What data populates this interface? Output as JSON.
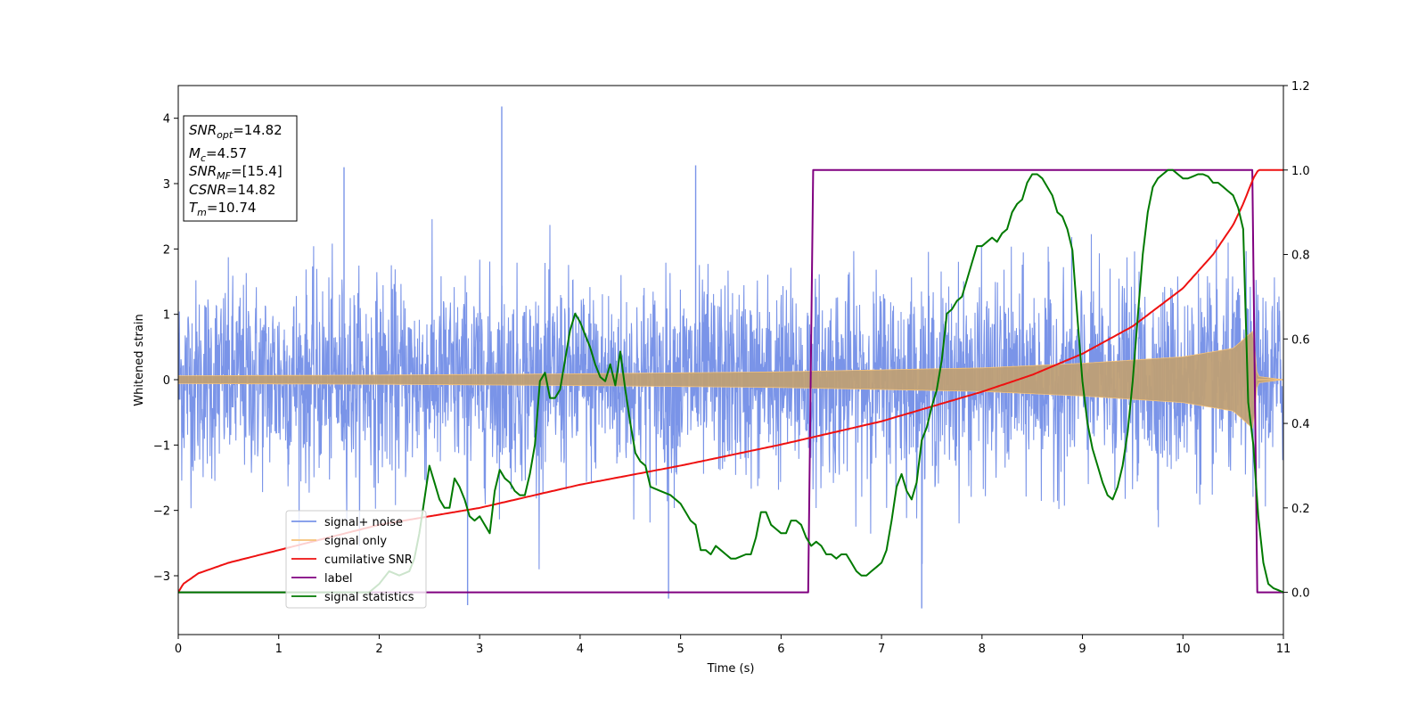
{
  "chart_data": {
    "type": "line",
    "title": "",
    "xlabel": "Time (s)",
    "ylabel": "Whitened strain",
    "xlim": [
      0,
      11
    ],
    "ylim_left": [
      -3.9,
      4.5
    ],
    "ylim_right": [
      -0.1,
      1.2
    ],
    "x_ticks": [
      0,
      1,
      2,
      3,
      4,
      5,
      6,
      7,
      8,
      9,
      10,
      11
    ],
    "y_ticks_left": [
      -3,
      -2,
      -1,
      0,
      1,
      2,
      3,
      4
    ],
    "y_ticks_right": [
      0.0,
      0.2,
      0.4,
      0.6,
      0.8,
      1.0,
      1.2
    ],
    "grid": false,
    "legend_position": "lower-left",
    "info_box": {
      "snr_opt": {
        "symbol": "SNR",
        "sub": "opt",
        "value": "=14.82"
      },
      "mc": {
        "symbol": "M",
        "sub": "c",
        "value": "=4.57"
      },
      "snr_mf": {
        "symbol": "SNR",
        "sub": "MF",
        "value": "=[15.4]"
      },
      "csnr": {
        "symbol": "CSNR",
        "sub": "",
        "value": "=14.82"
      },
      "tm": {
        "symbol": "T",
        "sub": "m",
        "value": "=10.74"
      }
    },
    "series": [
      {
        "name": "signal+ noise",
        "axis": "left",
        "color": "#7a94e8",
        "description_values": {
          "typical_range": [
            -2.2,
            2.3
          ],
          "peaks": [
            [
              3.22,
              4.18
            ],
            [
              7.4,
              -3.5
            ],
            [
              2.88,
              -3.45
            ],
            [
              4.88,
              -3.35
            ],
            [
              5.15,
              3.28
            ],
            [
              1.65,
              3.25
            ]
          ]
        }
      },
      {
        "name": "signal only",
        "axis": "left",
        "color": "#f6c37a",
        "envelope": {
          "x": [
            0,
            2,
            4,
            6,
            8,
            9,
            10,
            10.5,
            10.7,
            10.74,
            11
          ],
          "amp": [
            0.06,
            0.07,
            0.09,
            0.12,
            0.18,
            0.25,
            0.35,
            0.48,
            0.75,
            0.05,
            0.0
          ]
        }
      },
      {
        "name": "cumilative SNR",
        "axis": "right",
        "color": "#ee1111",
        "x": [
          0,
          0.05,
          0.2,
          0.5,
          1,
          2,
          3,
          4,
          5,
          6,
          7,
          8,
          8.5,
          9,
          9.5,
          10,
          10.3,
          10.5,
          10.6,
          10.7,
          10.75,
          11
        ],
        "y": [
          0.0,
          0.02,
          0.045,
          0.07,
          0.1,
          0.16,
          0.2,
          0.255,
          0.3,
          0.35,
          0.405,
          0.475,
          0.515,
          0.565,
          0.63,
          0.72,
          0.8,
          0.87,
          0.92,
          0.98,
          1.0,
          1.0
        ]
      },
      {
        "name": "label",
        "axis": "right",
        "color": "#800080",
        "x": [
          0,
          6.27,
          6.32,
          10.69,
          10.74,
          11
        ],
        "y": [
          0,
          0,
          1,
          1,
          0,
          0
        ]
      },
      {
        "name": "signal statistics",
        "axis": "right",
        "color": "#007a00",
        "x": [
          0,
          1.9,
          2.0,
          2.1,
          2.2,
          2.3,
          2.35,
          2.4,
          2.45,
          2.5,
          2.55,
          2.6,
          2.65,
          2.7,
          2.75,
          2.8,
          2.85,
          2.9,
          2.95,
          3.0,
          3.05,
          3.1,
          3.15,
          3.2,
          3.25,
          3.3,
          3.35,
          3.4,
          3.45,
          3.5,
          3.55,
          3.6,
          3.65,
          3.7,
          3.75,
          3.8,
          3.85,
          3.9,
          3.95,
          4.0,
          4.05,
          4.1,
          4.15,
          4.2,
          4.25,
          4.3,
          4.35,
          4.4,
          4.45,
          4.5,
          4.55,
          4.6,
          4.65,
          4.7,
          4.8,
          4.9,
          5.0,
          5.05,
          5.1,
          5.15,
          5.2,
          5.25,
          5.3,
          5.35,
          5.4,
          5.45,
          5.5,
          5.55,
          5.6,
          5.65,
          5.7,
          5.75,
          5.8,
          5.85,
          5.9,
          5.95,
          6.0,
          6.05,
          6.1,
          6.15,
          6.2,
          6.25,
          6.3,
          6.35,
          6.4,
          6.45,
          6.5,
          6.55,
          6.6,
          6.65,
          6.7,
          6.75,
          6.8,
          6.85,
          6.9,
          6.95,
          7.0,
          7.05,
          7.1,
          7.15,
          7.2,
          7.25,
          7.3,
          7.35,
          7.4,
          7.45,
          7.5,
          7.55,
          7.6,
          7.65,
          7.7,
          7.75,
          7.8,
          7.85,
          7.9,
          7.95,
          8.0,
          8.05,
          8.1,
          8.15,
          8.2,
          8.25,
          8.3,
          8.35,
          8.4,
          8.45,
          8.5,
          8.55,
          8.6,
          8.65,
          8.7,
          8.75,
          8.8,
          8.85,
          8.9,
          8.95,
          9.0,
          9.05,
          9.1,
          9.15,
          9.2,
          9.25,
          9.3,
          9.35,
          9.4,
          9.45,
          9.5,
          9.55,
          9.6,
          9.65,
          9.7,
          9.75,
          9.8,
          9.85,
          9.9,
          9.95,
          10.0,
          10.05,
          10.1,
          10.15,
          10.2,
          10.25,
          10.3,
          10.35,
          10.4,
          10.45,
          10.5,
          10.55,
          10.6,
          10.65,
          10.7,
          10.75,
          10.8,
          10.85,
          10.9,
          10.95,
          11.0
        ],
        "y": [
          0.0,
          0.0,
          0.02,
          0.05,
          0.04,
          0.05,
          0.08,
          0.14,
          0.22,
          0.3,
          0.26,
          0.22,
          0.2,
          0.2,
          0.27,
          0.25,
          0.22,
          0.18,
          0.17,
          0.18,
          0.16,
          0.14,
          0.24,
          0.29,
          0.27,
          0.26,
          0.24,
          0.23,
          0.23,
          0.28,
          0.35,
          0.5,
          0.52,
          0.46,
          0.46,
          0.48,
          0.55,
          0.62,
          0.66,
          0.64,
          0.61,
          0.58,
          0.54,
          0.51,
          0.5,
          0.54,
          0.49,
          0.57,
          0.48,
          0.4,
          0.33,
          0.31,
          0.3,
          0.25,
          0.24,
          0.23,
          0.21,
          0.19,
          0.17,
          0.16,
          0.1,
          0.1,
          0.09,
          0.11,
          0.1,
          0.09,
          0.08,
          0.08,
          0.085,
          0.09,
          0.09,
          0.13,
          0.19,
          0.19,
          0.16,
          0.15,
          0.14,
          0.14,
          0.17,
          0.17,
          0.16,
          0.13,
          0.11,
          0.12,
          0.11,
          0.09,
          0.09,
          0.08,
          0.09,
          0.09,
          0.07,
          0.05,
          0.04,
          0.04,
          0.05,
          0.06,
          0.07,
          0.1,
          0.17,
          0.25,
          0.28,
          0.24,
          0.22,
          0.26,
          0.36,
          0.39,
          0.44,
          0.48,
          0.55,
          0.66,
          0.67,
          0.69,
          0.7,
          0.74,
          0.78,
          0.82,
          0.82,
          0.83,
          0.84,
          0.83,
          0.85,
          0.86,
          0.9,
          0.92,
          0.93,
          0.97,
          0.99,
          0.99,
          0.98,
          0.96,
          0.94,
          0.9,
          0.89,
          0.86,
          0.81,
          0.65,
          0.5,
          0.4,
          0.34,
          0.3,
          0.26,
          0.23,
          0.22,
          0.25,
          0.3,
          0.38,
          0.5,
          0.65,
          0.8,
          0.9,
          0.96,
          0.98,
          0.99,
          1.0,
          1.0,
          0.99,
          0.98,
          0.98,
          0.985,
          0.99,
          0.99,
          0.985,
          0.97,
          0.97,
          0.96,
          0.95,
          0.94,
          0.91,
          0.86,
          0.45,
          0.35,
          0.18,
          0.07,
          0.02,
          0.01,
          0.005,
          0.0
        ]
      }
    ]
  }
}
